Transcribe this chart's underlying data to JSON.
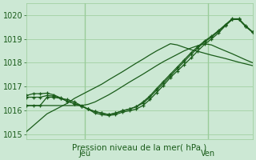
{
  "title": "Pression niveau de la mer( hPa )",
  "ylim": [
    1014.8,
    1020.5
  ],
  "xlim": [
    0,
    33
  ],
  "yticks": [
    1015,
    1016,
    1017,
    1018,
    1019,
    1020
  ],
  "background_color": "#cce8d4",
  "grid_color": "#99cc99",
  "line_color": "#1a5c1a",
  "jeu_x": 8.5,
  "ven_x": 26.5,
  "series": [
    {
      "xs": [
        0,
        1,
        2,
        3,
        4,
        5,
        6,
        7,
        8,
        9,
        10,
        11,
        12,
        13,
        14,
        15,
        16,
        17,
        18,
        19,
        20,
        21,
        22,
        23,
        24,
        25,
        26,
        27,
        28,
        29,
        30,
        31,
        32,
        33
      ],
      "ys": [
        1015.1,
        1015.35,
        1015.6,
        1015.85,
        1016.0,
        1016.15,
        1016.3,
        1016.5,
        1016.65,
        1016.8,
        1016.95,
        1017.1,
        1017.28,
        1017.45,
        1017.62,
        1017.8,
        1017.98,
        1018.15,
        1018.33,
        1018.5,
        1018.65,
        1018.8,
        1018.75,
        1018.65,
        1018.55,
        1018.48,
        1018.4,
        1018.32,
        1018.25,
        1018.18,
        1018.1,
        1018.02,
        1017.95,
        1017.88
      ],
      "marker": false
    },
    {
      "xs": [
        0,
        1,
        2,
        3,
        4,
        5,
        6,
        7,
        8,
        9,
        10,
        11,
        12,
        13,
        14,
        15,
        16,
        17,
        18,
        19,
        20,
        21,
        22,
        23,
        24,
        25,
        26,
        27,
        28,
        29,
        30,
        31,
        32,
        33
      ],
      "ys": [
        1016.2,
        1016.2,
        1016.2,
        1016.2,
        1016.2,
        1016.2,
        1016.2,
        1016.2,
        1016.2,
        1016.25,
        1016.35,
        1016.5,
        1016.65,
        1016.82,
        1017.0,
        1017.18,
        1017.35,
        1017.52,
        1017.7,
        1017.88,
        1018.05,
        1018.2,
        1018.35,
        1018.5,
        1018.62,
        1018.72,
        1018.8,
        1018.75,
        1018.62,
        1018.5,
        1018.38,
        1018.25,
        1018.12,
        1018.0
      ],
      "marker": false
    },
    {
      "xs": [
        0,
        1,
        2,
        3,
        4,
        5,
        6,
        7,
        8,
        9,
        10,
        11,
        12,
        13,
        14,
        15,
        16,
        17,
        18,
        19,
        20,
        21,
        22,
        23,
        24,
        25,
        26,
        27,
        28,
        29,
        30,
        31,
        32,
        33
      ],
      "ys": [
        1016.2,
        1016.2,
        1016.2,
        1016.55,
        1016.55,
        1016.5,
        1016.45,
        1016.35,
        1016.2,
        1016.05,
        1015.88,
        1015.82,
        1015.78,
        1015.82,
        1015.92,
        1015.98,
        1016.05,
        1016.2,
        1016.45,
        1016.75,
        1017.05,
        1017.38,
        1017.65,
        1017.92,
        1018.2,
        1018.5,
        1018.78,
        1019.0,
        1019.25,
        1019.55,
        1019.82,
        1019.82,
        1019.52,
        1019.28
      ],
      "marker": true
    },
    {
      "xs": [
        0,
        1,
        2,
        3,
        4,
        5,
        6,
        7,
        8,
        9,
        10,
        11,
        12,
        13,
        14,
        15,
        16,
        17,
        18,
        19,
        20,
        21,
        22,
        23,
        24,
        25,
        26,
        27,
        28,
        29,
        30,
        31,
        32,
        33
      ],
      "ys": [
        1016.55,
        1016.55,
        1016.55,
        1016.62,
        1016.6,
        1016.5,
        1016.38,
        1016.28,
        1016.18,
        1016.05,
        1015.95,
        1015.88,
        1015.82,
        1015.88,
        1015.98,
        1016.05,
        1016.15,
        1016.3,
        1016.55,
        1016.85,
        1017.15,
        1017.45,
        1017.75,
        1018.05,
        1018.35,
        1018.62,
        1018.88,
        1019.08,
        1019.32,
        1019.58,
        1019.82,
        1019.82,
        1019.52,
        1019.28
      ],
      "marker": true
    },
    {
      "xs": [
        0,
        1,
        2,
        3,
        4,
        5,
        6,
        7,
        8,
        9,
        10,
        11,
        12,
        13,
        14,
        15,
        16,
        17,
        18,
        19,
        20,
        21,
        22,
        23,
        24,
        25,
        26,
        27,
        28,
        29,
        30,
        31,
        32,
        33
      ],
      "ys": [
        1016.62,
        1016.7,
        1016.7,
        1016.72,
        1016.65,
        1016.52,
        1016.38,
        1016.28,
        1016.18,
        1016.05,
        1015.95,
        1015.88,
        1015.82,
        1015.88,
        1015.98,
        1016.05,
        1016.15,
        1016.35,
        1016.6,
        1016.92,
        1017.22,
        1017.52,
        1017.82,
        1018.12,
        1018.42,
        1018.68,
        1018.92,
        1019.12,
        1019.35,
        1019.6,
        1019.85,
        1019.85,
        1019.55,
        1019.3
      ],
      "marker": true
    }
  ]
}
